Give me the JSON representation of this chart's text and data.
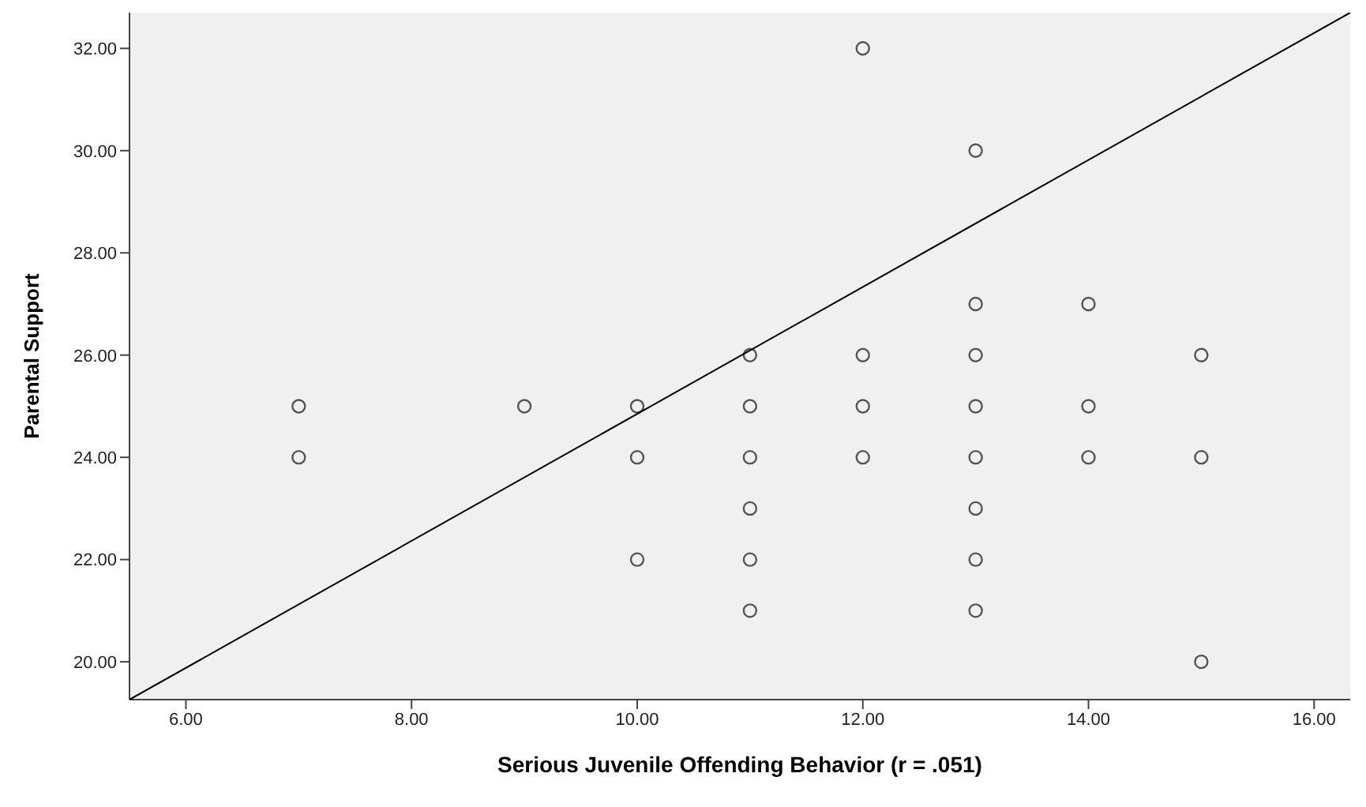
{
  "chart_data": {
    "type": "scatter",
    "xlabel": "Serious Juvenile Offending   Behavior (r = .051)",
    "ylabel": "Parental Support",
    "xlim": [
      5.5,
      16.32
    ],
    "ylim": [
      19.26,
      32.7
    ],
    "xticks": [
      {
        "value": 6,
        "label": "6.00"
      },
      {
        "value": 8,
        "label": "8.00"
      },
      {
        "value": 10,
        "label": "10.00"
      },
      {
        "value": 12,
        "label": "12.00"
      },
      {
        "value": 14,
        "label": "14.00"
      },
      {
        "value": 16,
        "label": "16.00"
      }
    ],
    "yticks": [
      {
        "value": 20,
        "label": "20.00"
      },
      {
        "value": 22,
        "label": "22.00"
      },
      {
        "value": 24,
        "label": "24.00"
      },
      {
        "value": 26,
        "label": "26.00"
      },
      {
        "value": 28,
        "label": "28.00"
      },
      {
        "value": 30,
        "label": "30.00"
      },
      {
        "value": 32,
        "label": "32.00"
      }
    ],
    "grid": false,
    "legend": false,
    "series": [
      {
        "type": "scatter",
        "color": "#555555",
        "marker": "circle",
        "x": [
          7,
          7,
          9,
          10,
          10,
          10,
          11,
          11,
          11,
          11,
          11,
          11,
          12,
          12,
          12,
          12,
          13,
          13,
          13,
          13,
          13,
          13,
          13,
          13,
          14,
          14,
          14,
          15,
          15,
          15
        ],
        "values": [
          25,
          24,
          25,
          25,
          24,
          22,
          26,
          25,
          24,
          23,
          22,
          21,
          32,
          26,
          25,
          24,
          30,
          27,
          26,
          25,
          24,
          23,
          22,
          21,
          27,
          25,
          24,
          26,
          24,
          20
        ]
      },
      {
        "type": "line",
        "color": "#000000",
        "marker": "none",
        "x": [
          5.5,
          16.32
        ],
        "values": [
          19.26,
          32.7
        ]
      }
    ]
  }
}
